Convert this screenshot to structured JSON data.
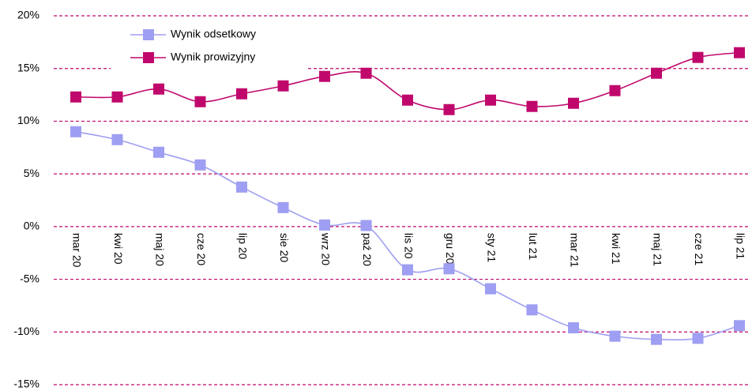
{
  "chart_data": {
    "type": "line",
    "categories": [
      "mar 20",
      "kwi 20",
      "maj 20",
      "cze 20",
      "lip 20",
      "sie 20",
      "wrz 20",
      "paź 20",
      "lis 20",
      "gru 20",
      "sty 21",
      "lut 21",
      "mar 21",
      "kwi 21",
      "maj 21",
      "cze 21",
      "lip 21"
    ],
    "series": [
      {
        "name": "Wynik odsetkowy",
        "color": "#9e9ef2",
        "values": [
          9.0,
          8.25,
          7.05,
          5.85,
          3.75,
          1.8,
          0.15,
          0.1,
          -4.1,
          -4.0,
          -5.9,
          -7.9,
          -9.6,
          -10.4,
          -10.7,
          -10.6,
          -9.4
        ]
      },
      {
        "name": "Wynik prowizyjny",
        "color": "#c0086c",
        "values": [
          12.3,
          12.3,
          13.05,
          11.85,
          12.6,
          13.35,
          14.25,
          14.55,
          12.0,
          11.1,
          12.0,
          11.4,
          11.7,
          12.9,
          14.55,
          16.05,
          16.5
        ]
      }
    ],
    "ylim": [
      -15,
      20
    ],
    "yticks": [
      {
        "value": -15,
        "label": "-15%"
      },
      {
        "value": -10,
        "label": "-10%"
      },
      {
        "value": -5,
        "label": "-5%"
      },
      {
        "value": 0,
        "label": "0%"
      },
      {
        "value": 5,
        "label": "5%"
      },
      {
        "value": 10,
        "label": "10%"
      },
      {
        "value": 15,
        "label": "15%"
      },
      {
        "value": 20,
        "label": "20%"
      }
    ],
    "grid": true,
    "grid_color": "#c0086c",
    "legend": "top-left"
  }
}
